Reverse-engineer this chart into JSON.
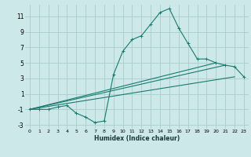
{
  "xlabel": "Humidex (Indice chaleur)",
  "bg_color": "#cce8e8",
  "grid_color": "#aacccc",
  "line_color": "#1a7a6e",
  "xlim": [
    -0.5,
    23.5
  ],
  "ylim": [
    -3.5,
    12.5
  ],
  "xticks": [
    0,
    1,
    2,
    3,
    4,
    5,
    6,
    7,
    8,
    9,
    10,
    11,
    12,
    13,
    14,
    15,
    16,
    17,
    18,
    19,
    20,
    21,
    22,
    23
  ],
  "yticks": [
    -3,
    -1,
    1,
    3,
    5,
    7,
    9,
    11
  ],
  "line1_x": [
    0,
    1,
    2,
    3,
    4,
    5,
    6,
    7,
    8,
    9,
    10,
    11,
    12,
    13,
    14,
    15,
    16,
    17,
    18,
    19,
    20,
    21,
    22,
    23
  ],
  "line1_y": [
    -1,
    -1,
    -1,
    -0.7,
    -0.5,
    -1.5,
    -2.0,
    -2.7,
    -2.5,
    3.5,
    6.5,
    8.0,
    8.5,
    10.0,
    11.5,
    12.0,
    9.5,
    7.5,
    5.5,
    5.5,
    5.0,
    4.7,
    4.5,
    3.2
  ],
  "line2_x": [
    0,
    22
  ],
  "line2_y": [
    -1,
    3.2
  ],
  "line3_x": [
    0,
    20
  ],
  "line3_y": [
    -1,
    5.0
  ],
  "line4_x": [
    0,
    21
  ],
  "line4_y": [
    -1,
    4.7
  ],
  "marker": "+"
}
